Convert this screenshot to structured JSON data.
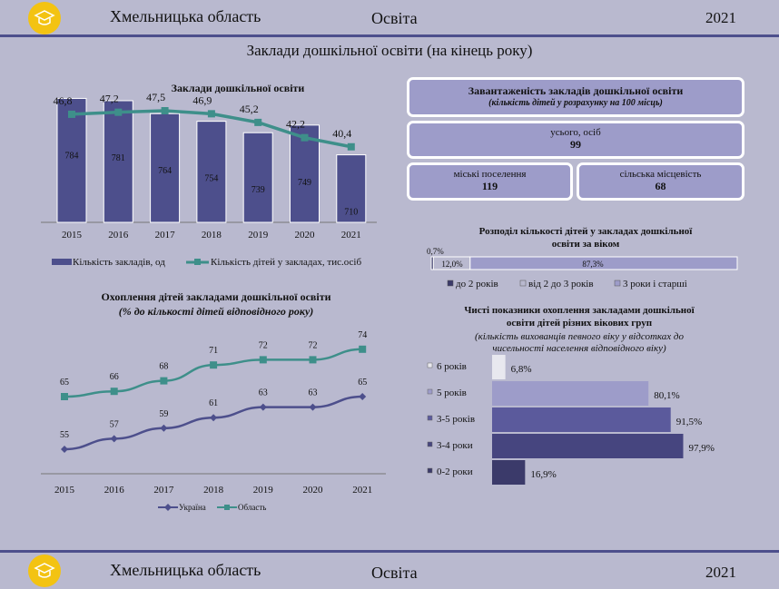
{
  "header": {
    "region": "Хмельницька область",
    "section": "Освіта",
    "year": "2021"
  },
  "footer": {
    "region": "Хмельницька область",
    "section": "Освіта",
    "year": "2021"
  },
  "page_title": "Заклади дошкільної освіти (на кінець року)",
  "colors": {
    "bar": "#4d4f8c",
    "line": "#3e8f8a",
    "ukraine": "#4d4f8c",
    "region_line": "#3e8f8a",
    "box": "#9d9cc9",
    "logo": "#f3c312"
  },
  "load_box": {
    "title": "Завантаженість закладів дошкільної освіти",
    "subtitle": "(кількість дітей у розрахунку на 100 місць)",
    "total_label": "усього, осіб",
    "total_value": "99",
    "urban_label": "міські поселення",
    "urban_value": "119",
    "rural_label": "сільська місцевість",
    "rural_value": "68"
  },
  "chart_data": [
    {
      "type": "bar",
      "title": "Заклади дошкільної освіти",
      "categories": [
        "2015",
        "2016",
        "2017",
        "2018",
        "2019",
        "2020",
        "2021"
      ],
      "series": [
        {
          "name": "Кількість закладів, од",
          "kind": "bar",
          "values": [
            784,
            781,
            764,
            754,
            739,
            749,
            710
          ]
        },
        {
          "name": "Кількість дітей у закладах, тис.осіб",
          "kind": "line",
          "values": [
            46.8,
            47.2,
            47.5,
            46.9,
            45.2,
            42.2,
            40.4
          ],
          "labels": [
            "46,8",
            "47,2",
            "47,5",
            "46,9",
            "45,2",
            "42,2",
            "40,4"
          ]
        }
      ]
    },
    {
      "type": "line",
      "title": "Охоплення дітей закладами дошкільної освіти",
      "subtitle": "(% до кількості дітей відповідного року)",
      "categories": [
        "2015",
        "2016",
        "2017",
        "2018",
        "2019",
        "2020",
        "2021"
      ],
      "series": [
        {
          "name": "Україна",
          "values": [
            55,
            57,
            59,
            61,
            63,
            63,
            65
          ]
        },
        {
          "name": "Область",
          "values": [
            65,
            66,
            68,
            71,
            72,
            72,
            74
          ]
        }
      ]
    },
    {
      "type": "bar",
      "title": "Розподіл кількості дітей у закладах дошкільної освіти за віком",
      "stacked": true,
      "series": [
        {
          "name": "до 2 років",
          "values": [
            0.7
          ],
          "label": "0,7%"
        },
        {
          "name": "від 2 до 3 років",
          "values": [
            12.0
          ],
          "label": "12,0%"
        },
        {
          "name": "3 роки і старші",
          "values": [
            87.3
          ],
          "label": "87,3%"
        }
      ]
    },
    {
      "type": "bar",
      "orientation": "horizontal",
      "title": "Чисті показники охоплення закладами дошкільної освіти дітей різних вікових груп",
      "subtitle": "(кількість вихованців певного віку у відсотках до чисельності населення відповідного віку)",
      "categories": [
        "6 років",
        "5 років",
        "3-5 років",
        "3-4 роки",
        "0-2 роки"
      ],
      "values": [
        6.8,
        80.1,
        91.5,
        97.9,
        16.9
      ],
      "labels": [
        "6,8%",
        "80,1%",
        "91,5%",
        "97,9%",
        "16,9%"
      ],
      "bar_colors": [
        "#e8e8ef",
        "#9d9cc9",
        "#5b5a9c",
        "#46457f",
        "#3b3a6a"
      ]
    }
  ]
}
